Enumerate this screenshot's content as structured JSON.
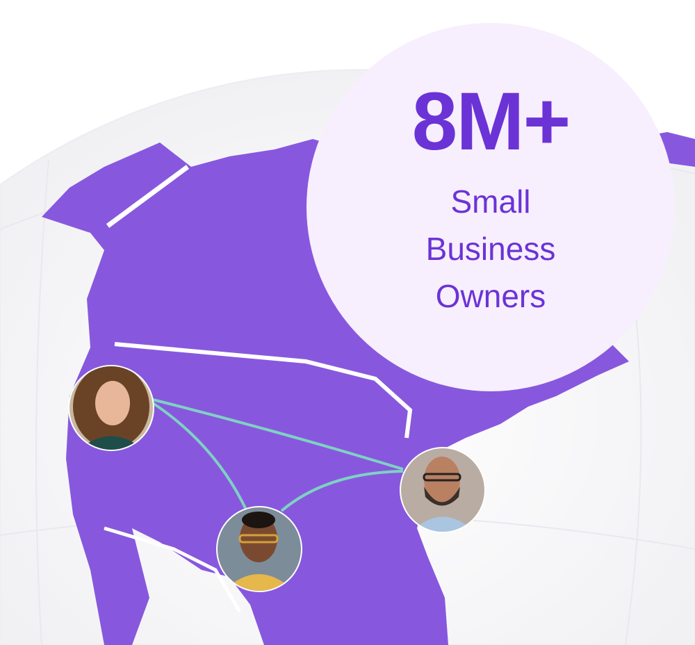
{
  "stat": {
    "value": "8M+",
    "label_lines": [
      "Small",
      "Business",
      "Owners"
    ]
  },
  "avatars": [
    {
      "name": "woman-curly-hair"
    },
    {
      "name": "man-glasses-beard"
    },
    {
      "name": "man-glasses-yellow-sweater"
    }
  ],
  "colors": {
    "accent": "#6B33D6",
    "map": "#8758DE",
    "badge_bg": "#F7EFFD",
    "connector": "#7FD1C3",
    "globe": "#F5F5F7"
  }
}
